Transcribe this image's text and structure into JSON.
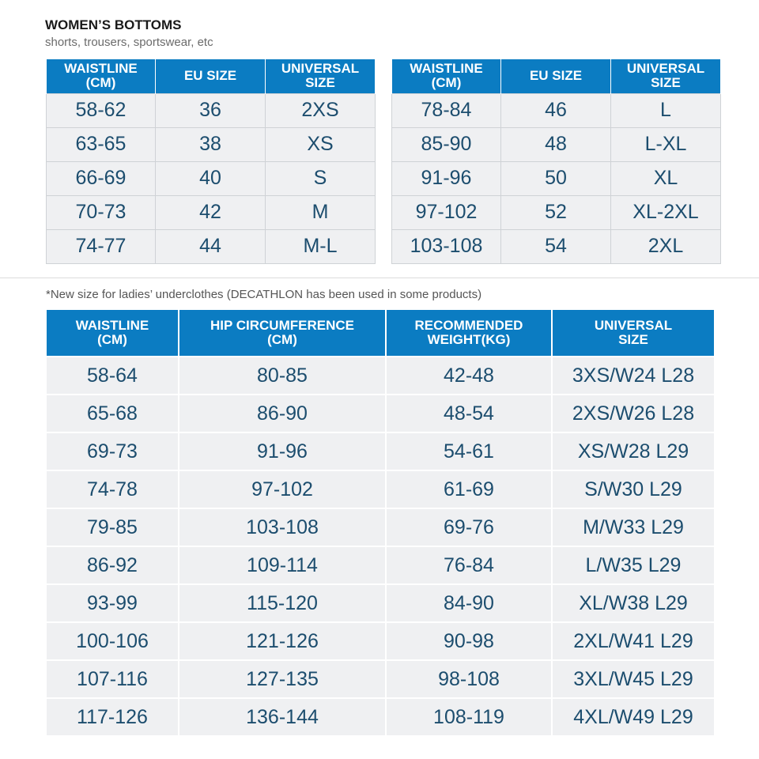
{
  "header": {
    "title": "WOMEN’S BOTTOMS",
    "subtitle": "shorts, trousers, sportswear, etc"
  },
  "table_left": {
    "headers": [
      "WAISTLINE\n(CM)",
      "EU SIZE",
      "UNIVERSAL\nSIZE"
    ],
    "rows": [
      [
        "58-62",
        "36",
        "2XS"
      ],
      [
        "63-65",
        "38",
        "XS"
      ],
      [
        "66-69",
        "40",
        "S"
      ],
      [
        "70-73",
        "42",
        "M"
      ],
      [
        "74-77",
        "44",
        "M-L"
      ]
    ]
  },
  "table_right": {
    "headers": [
      "WAISTLINE\n(CM)",
      "EU SIZE",
      "UNIVERSAL\nSIZE"
    ],
    "rows": [
      [
        "78-84",
        "46",
        "L"
      ],
      [
        "85-90",
        "48",
        "L-XL"
      ],
      [
        "91-96",
        "50",
        "XL"
      ],
      [
        "97-102",
        "52",
        "XL-2XL"
      ],
      [
        "103-108",
        "54",
        "2XL"
      ]
    ]
  },
  "note": "*New size for ladies’ underclothes (DECATHLON has been used in some products)",
  "table_bottom": {
    "headers": [
      "WAISTLINE\n(CM)",
      "HIP CIRCUMFERENCE\n(CM)",
      "RECOMMENDED\nWEIGHT(KG)",
      "UNIVERSAL\nSIZE"
    ],
    "rows": [
      [
        "58-64",
        "80-85",
        "42-48",
        "3XS/W24 L28"
      ],
      [
        "65-68",
        "86-90",
        "48-54",
        "2XS/W26 L28"
      ],
      [
        "69-73",
        "91-96",
        "54-61",
        "XS/W28 L29"
      ],
      [
        "74-78",
        "97-102",
        "61-69",
        "S/W30 L29"
      ],
      [
        "79-85",
        "103-108",
        "69-76",
        "M/W33 L29"
      ],
      [
        "86-92",
        "109-114",
        "76-84",
        "L/W35 L29"
      ],
      [
        "93-99",
        "115-120",
        "84-90",
        "XL/W38 L29"
      ],
      [
        "100-106",
        "121-126",
        "90-98",
        "2XL/W41 L29"
      ],
      [
        "107-116",
        "127-135",
        "98-108",
        "3XL/W45 L29"
      ],
      [
        "117-126",
        "136-144",
        "108-119",
        "4XL/W49 L29"
      ]
    ]
  }
}
